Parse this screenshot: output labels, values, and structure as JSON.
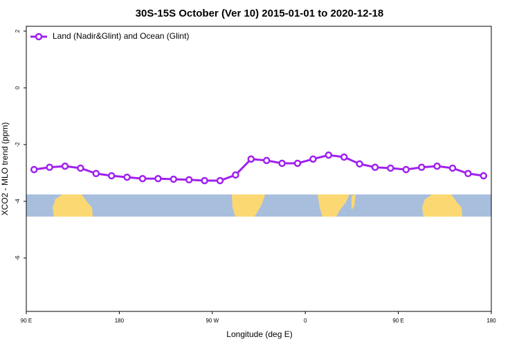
{
  "chart_data": {
    "type": "line",
    "title": "30S-15S October (Ver 10)   2015-01-01 to 2020-12-18",
    "x_label": "Longitude (deg E)",
    "y_label": "XCO2 - MLO trend (ppm)",
    "x": [
      97.5,
      112.5,
      127.5,
      142.5,
      157.5,
      172.5,
      187.5,
      202.5,
      217.5,
      232.5,
      247.5,
      262.5,
      277.5,
      292.5,
      307.5,
      322.5,
      337.5,
      352.5,
      367.5,
      382.5,
      397.5,
      412.5,
      427.5,
      442.5,
      457.5,
      472.5,
      487.5,
      502.5,
      517.5,
      532.5
    ],
    "series": [
      {
        "name": "Land (Nadir&Glint) and Ocean (Glint)",
        "color": "#a020f0",
        "values": [
          -2.88,
          -2.8,
          -2.76,
          -2.83,
          -3.02,
          -3.1,
          -3.15,
          -3.2,
          -3.2,
          -3.22,
          -3.24,
          -3.27,
          -3.27,
          -3.07,
          -2.51,
          -2.56,
          -2.66,
          -2.66,
          -2.51,
          -2.37,
          -2.44,
          -2.68,
          -2.8,
          -2.83,
          -2.88,
          -2.8,
          -2.76,
          -2.83,
          -3.02,
          -3.1
        ]
      }
    ],
    "xlim": [
      90,
      540
    ],
    "xticks": [
      {
        "value": 90,
        "label": "90 E"
      },
      {
        "value": 180,
        "label": "180"
      },
      {
        "value": 270,
        "label": "90 W"
      },
      {
        "value": 360,
        "label": "0"
      },
      {
        "value": 450,
        "label": "90 E"
      },
      {
        "value": 540,
        "label": "180"
      }
    ],
    "ylim": [
      -7.88,
      2.17
    ],
    "yticks": [
      2,
      0,
      -2,
      -4,
      -6
    ],
    "legend": "top-left"
  }
}
